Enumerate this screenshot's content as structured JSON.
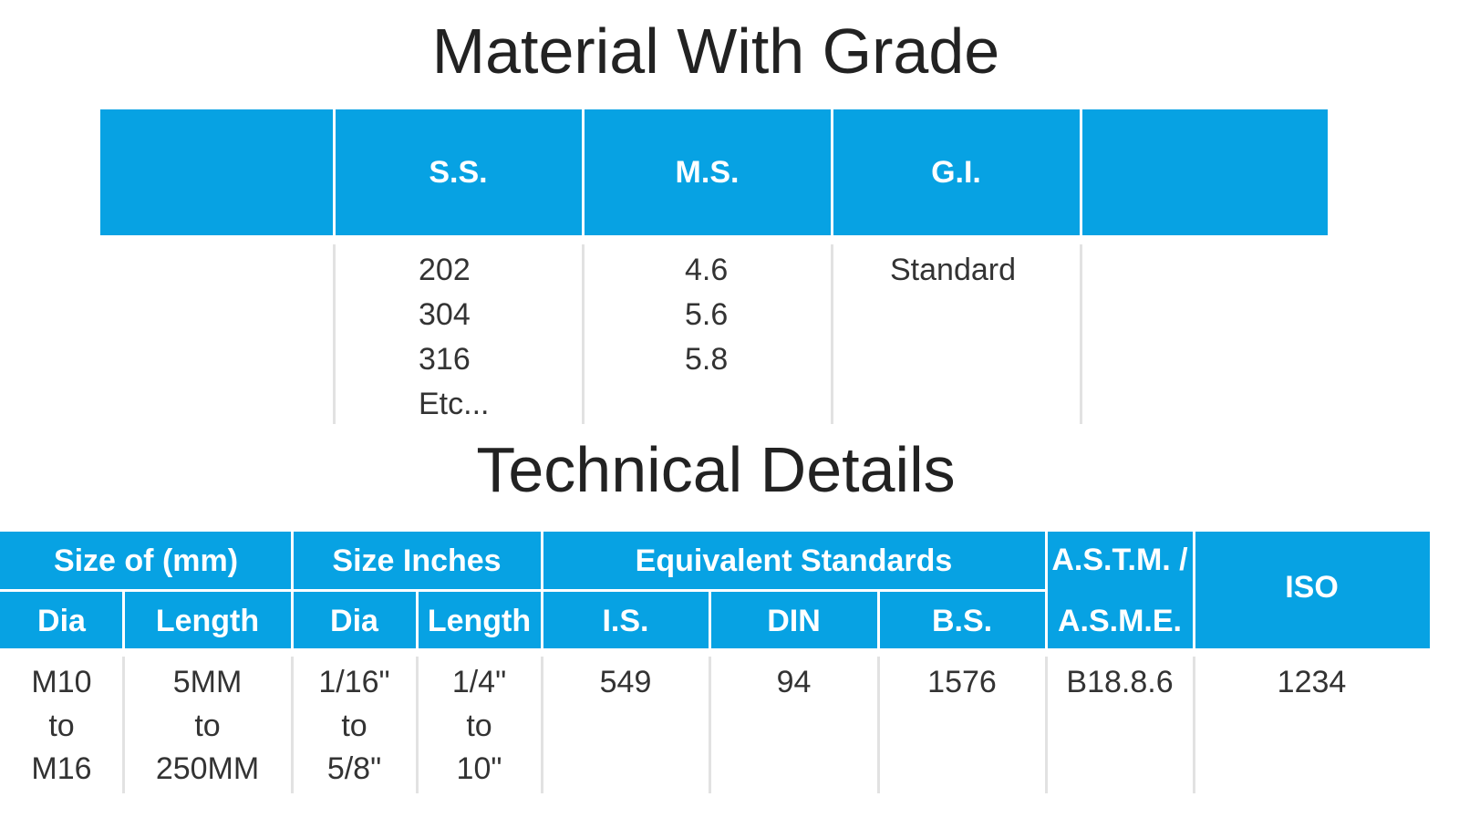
{
  "material": {
    "title": "Material With Grade",
    "headers": [
      "S.S.",
      "M.S.",
      "G.I."
    ],
    "cells": [
      [
        "202",
        "304",
        "316",
        "Etc..."
      ],
      [
        "4.6",
        "5.6",
        "5.8"
      ],
      [
        "Standard"
      ]
    ]
  },
  "technical": {
    "title": "Technical Details",
    "groups": [
      "Size of (mm)",
      "Size Inches",
      "Equivalent Standards"
    ],
    "astm": [
      "A.S.T.M. /",
      "A.S.M.E."
    ],
    "iso": "ISO",
    "subheaders": [
      "Dia",
      "Length",
      "Dia",
      "Length",
      "I.S.",
      "DIN",
      "B.S."
    ],
    "cells": [
      [
        "M10",
        "to",
        "M16"
      ],
      [
        "5MM",
        "to",
        "250MM"
      ],
      [
        "1/16\"",
        "to",
        "5/8\""
      ],
      [
        "1/4\"",
        "to",
        "10\""
      ],
      [
        "549"
      ],
      [
        "94"
      ],
      [
        "1576"
      ],
      [
        "B18.8.6"
      ],
      [
        "1234"
      ]
    ]
  }
}
